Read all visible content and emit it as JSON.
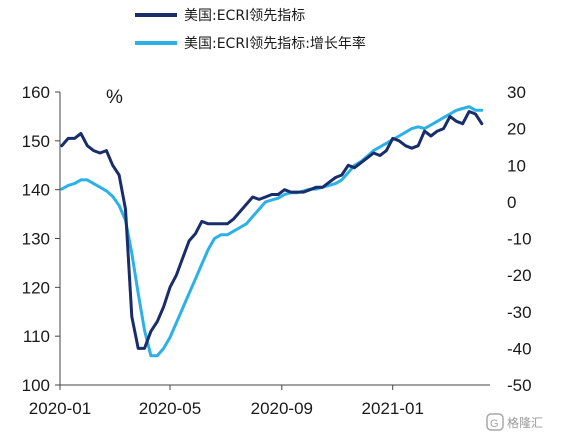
{
  "chart_data": {
    "type": "line",
    "unit_label": "%",
    "left_axis": {
      "ylim": [
        100,
        160
      ],
      "ticks": [
        "160",
        "150",
        "140",
        "130",
        "120",
        "110",
        "100"
      ]
    },
    "right_axis": {
      "ylim": [
        -50,
        30
      ],
      "ticks": [
        "30",
        "20",
        "10",
        "0",
        "-10",
        "-20",
        "-30",
        "-40",
        "-50"
      ]
    },
    "x_ticks": [
      "2020-01",
      "2020-05",
      "2020-09",
      "2021-01"
    ],
    "series": [
      {
        "name": "美国:ECRI领先指标",
        "axis": "left",
        "color": "#1a2d6b",
        "x": [
          "2020-01-03",
          "2020-01-10",
          "2020-01-17",
          "2020-01-24",
          "2020-01-31",
          "2020-02-07",
          "2020-02-14",
          "2020-02-21",
          "2020-02-28",
          "2020-03-06",
          "2020-03-13",
          "2020-03-20",
          "2020-03-27",
          "2020-04-03",
          "2020-04-10",
          "2020-04-17",
          "2020-04-24",
          "2020-05-01",
          "2020-05-08",
          "2020-05-15",
          "2020-05-22",
          "2020-05-29",
          "2020-06-05",
          "2020-06-12",
          "2020-06-19",
          "2020-06-26",
          "2020-07-03",
          "2020-07-10",
          "2020-07-17",
          "2020-07-24",
          "2020-07-31",
          "2020-08-07",
          "2020-08-14",
          "2020-08-21",
          "2020-08-28",
          "2020-09-04",
          "2020-09-11",
          "2020-09-18",
          "2020-09-25",
          "2020-10-02",
          "2020-10-09",
          "2020-10-16",
          "2020-10-23",
          "2020-10-30",
          "2020-11-06",
          "2020-11-13",
          "2020-11-20",
          "2020-11-27",
          "2020-12-04",
          "2020-12-11",
          "2020-12-18",
          "2020-12-25",
          "2021-01-01",
          "2021-01-08",
          "2021-01-15",
          "2021-01-22",
          "2021-01-29",
          "2021-02-05",
          "2021-02-12",
          "2021-02-19",
          "2021-02-26",
          "2021-03-05",
          "2021-03-12",
          "2021-03-19",
          "2021-03-26",
          "2021-04-02",
          "2021-04-09"
        ],
        "values": [
          149,
          150.5,
          150.5,
          151.5,
          149,
          148,
          147.5,
          148,
          145,
          143,
          136,
          114,
          107.5,
          107.5,
          111,
          113,
          116,
          120,
          122.5,
          126,
          129.5,
          131,
          133.5,
          133,
          133,
          133,
          133,
          134,
          135.5,
          137,
          138.5,
          138,
          138.5,
          139,
          139,
          140,
          139.5,
          139.5,
          139.5,
          140,
          140.5,
          140.5,
          141.5,
          142.5,
          143,
          145,
          144.5,
          145.5,
          146.5,
          147.5,
          147,
          148,
          150.5,
          150,
          149,
          148.5,
          149,
          152,
          151,
          152,
          152.5,
          155,
          154,
          153.5,
          156,
          155.5,
          153.5
        ]
      },
      {
        "name": "美国:ECRI领先指标:增长年率",
        "axis": "right",
        "color": "#2bb1e6",
        "x": [
          "2020-01-03",
          "2020-01-10",
          "2020-01-17",
          "2020-01-24",
          "2020-01-31",
          "2020-02-07",
          "2020-02-14",
          "2020-02-21",
          "2020-02-28",
          "2020-03-06",
          "2020-03-13",
          "2020-03-20",
          "2020-03-27",
          "2020-04-03",
          "2020-04-10",
          "2020-04-17",
          "2020-04-24",
          "2020-05-01",
          "2020-05-08",
          "2020-05-15",
          "2020-05-22",
          "2020-05-29",
          "2020-06-05",
          "2020-06-12",
          "2020-06-19",
          "2020-06-26",
          "2020-07-03",
          "2020-07-10",
          "2020-07-17",
          "2020-07-24",
          "2020-07-31",
          "2020-08-07",
          "2020-08-14",
          "2020-08-21",
          "2020-08-28",
          "2020-09-04",
          "2020-09-11",
          "2020-09-18",
          "2020-09-25",
          "2020-10-02",
          "2020-10-09",
          "2020-10-16",
          "2020-10-23",
          "2020-10-30",
          "2020-11-06",
          "2020-11-13",
          "2020-11-20",
          "2020-11-27",
          "2020-12-04",
          "2020-12-11",
          "2020-12-18",
          "2020-12-25",
          "2021-01-01",
          "2021-01-08",
          "2021-01-15",
          "2021-01-22",
          "2021-01-29",
          "2021-02-05",
          "2021-02-12",
          "2021-02-19",
          "2021-02-26",
          "2021-03-05",
          "2021-03-12",
          "2021-03-19",
          "2021-03-26",
          "2021-04-02",
          "2021-04-09"
        ],
        "values": [
          3.5,
          4.5,
          5,
          6,
          6,
          5,
          4,
          3,
          1.5,
          -1,
          -5,
          -14,
          -25,
          -35,
          -42,
          -42,
          -40,
          -37,
          -33,
          -29,
          -25,
          -21,
          -17,
          -13,
          -10,
          -9,
          -9,
          -8,
          -7,
          -6,
          -4,
          -2,
          0,
          0.5,
          1,
          2,
          2.5,
          2.5,
          3,
          3.5,
          3.5,
          4,
          4.5,
          5,
          6,
          8,
          10,
          11,
          12.5,
          14,
          15,
          16,
          17,
          18,
          19,
          20,
          20.5,
          20,
          21,
          22,
          23,
          24,
          25,
          25.5,
          26,
          25,
          25
        ]
      }
    ]
  },
  "watermark": "格隆汇"
}
